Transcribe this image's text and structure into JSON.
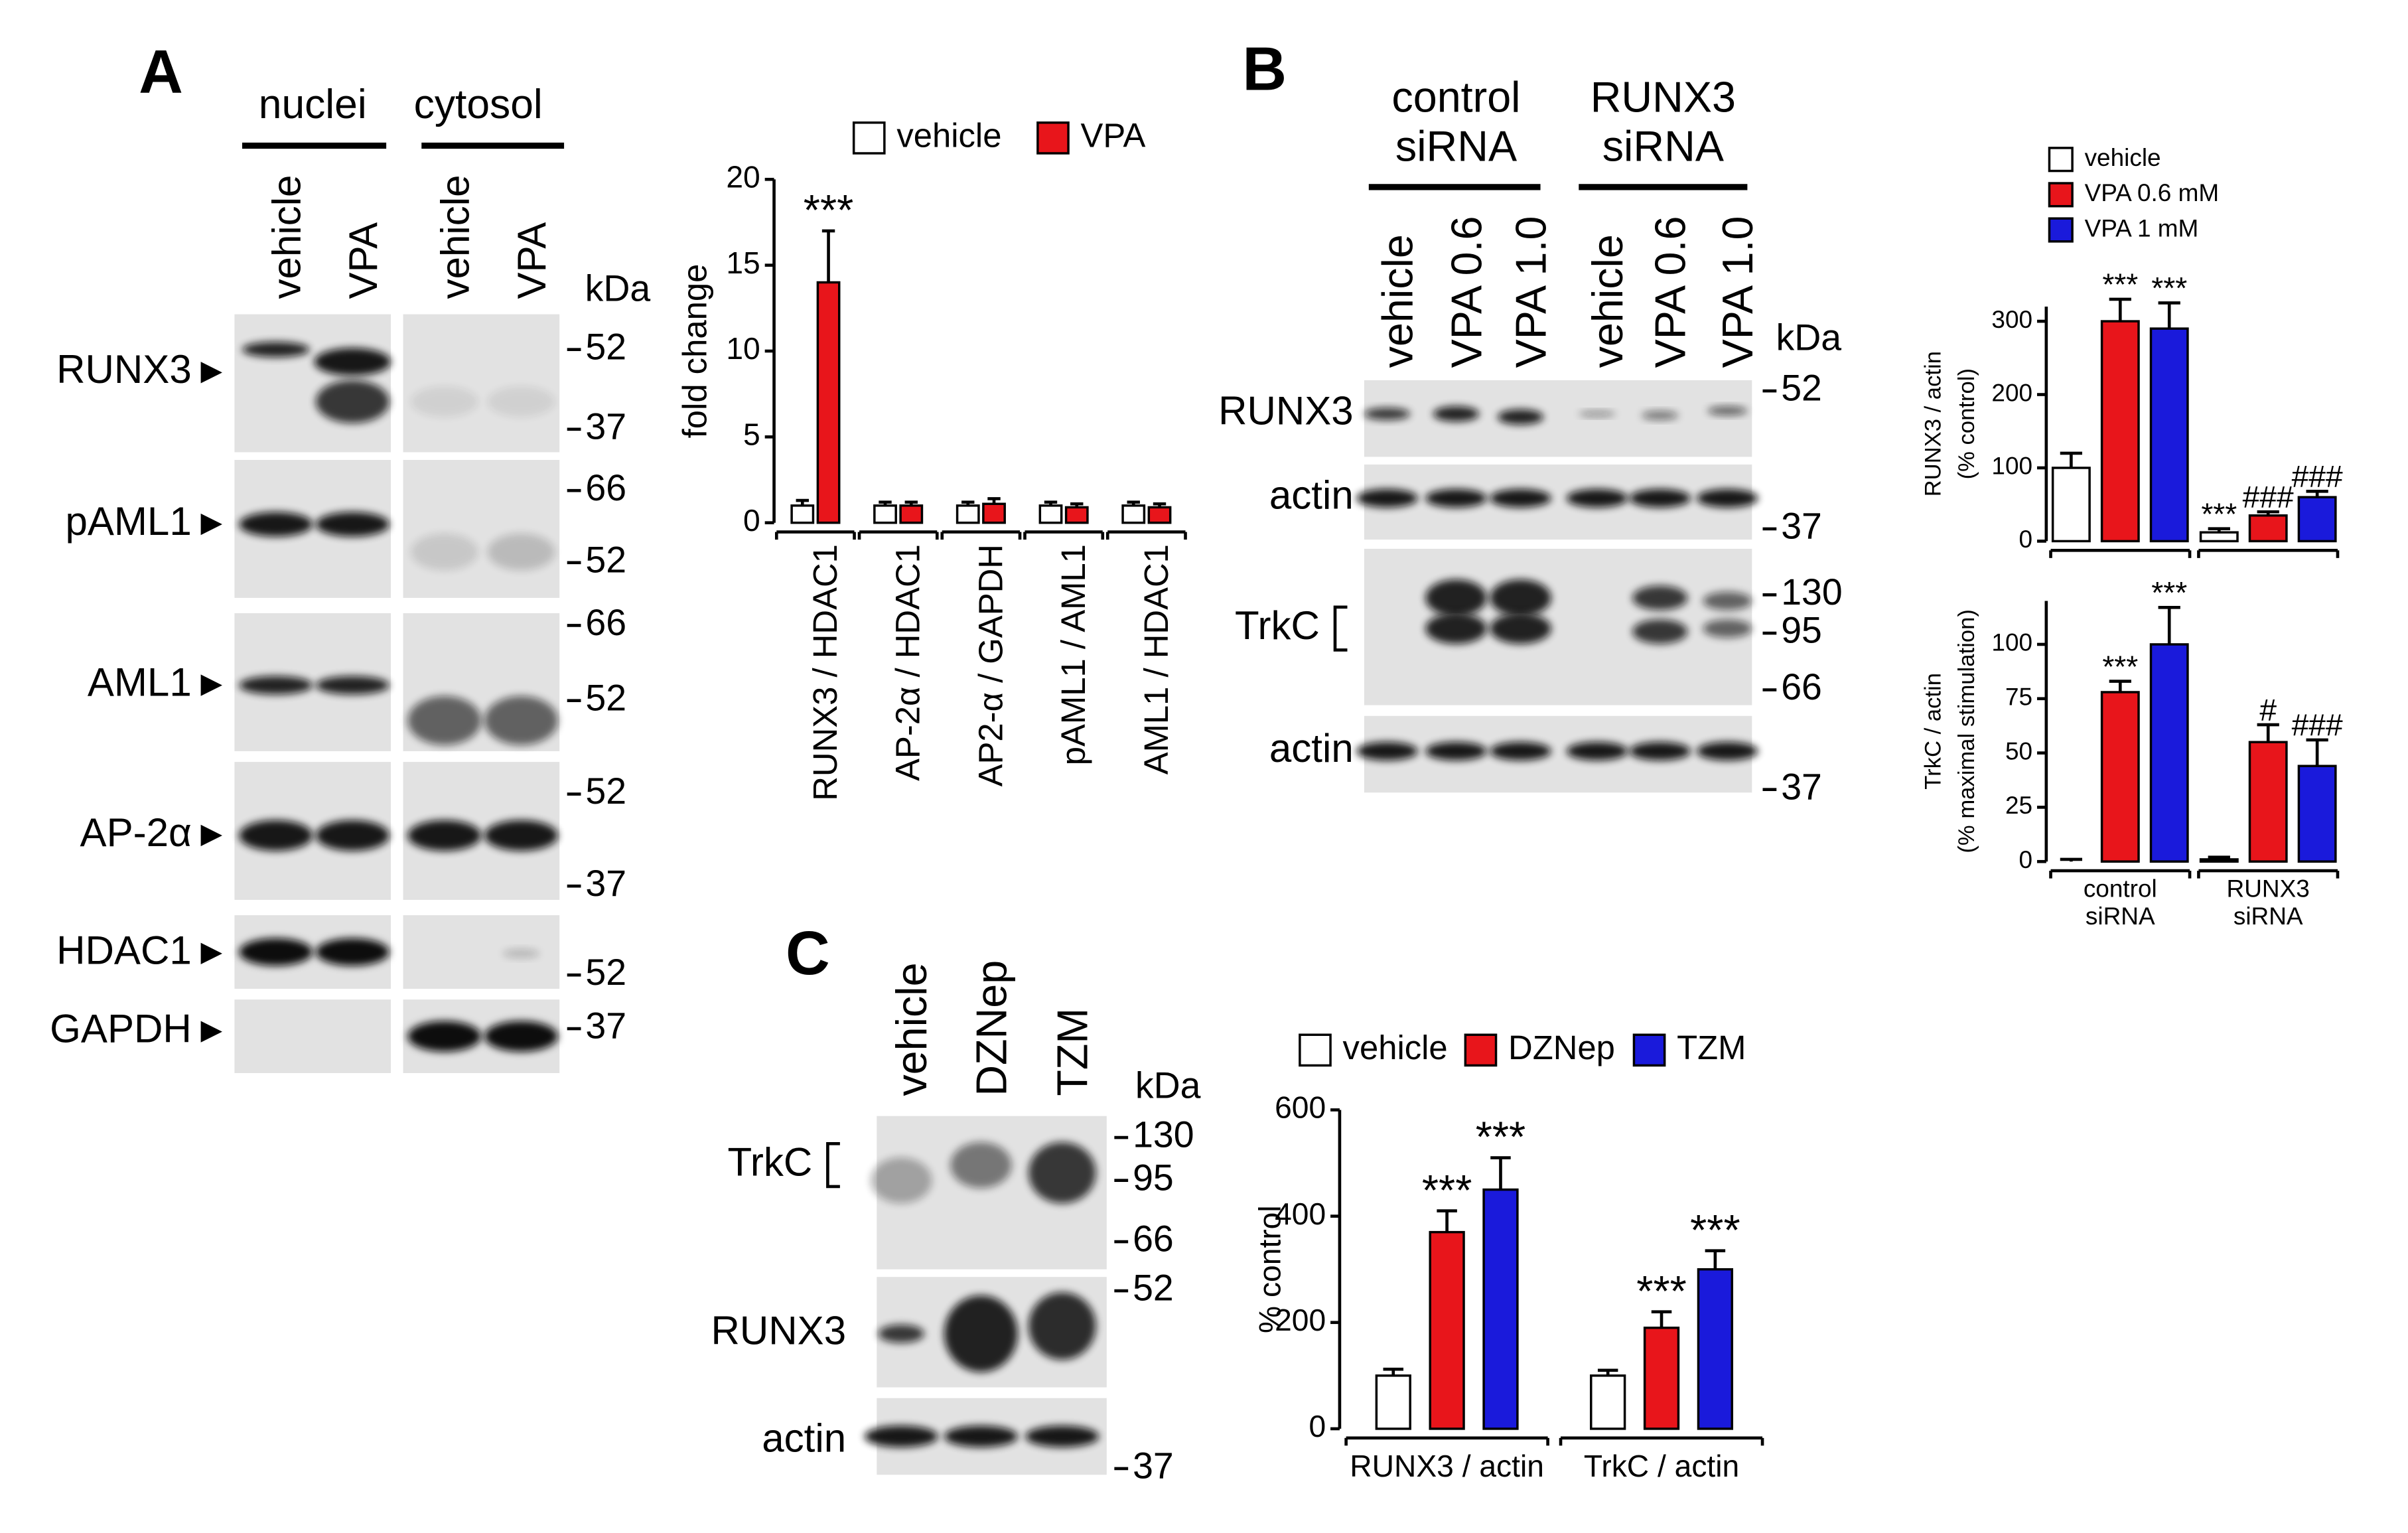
{
  "panels": {
    "A": {
      "label": "A",
      "fractions": [
        "nuclei",
        "cytosol"
      ],
      "lanes": [
        "vehicle",
        "VPA",
        "vehicle",
        "VPA"
      ],
      "unit": "kDa",
      "rows": [
        {
          "protein": "RUNX3",
          "markers": [
            52,
            37
          ]
        },
        {
          "protein": "pAML1",
          "markers": [
            66,
            52
          ]
        },
        {
          "protein": "AML1",
          "markers": [
            66,
            52
          ]
        },
        {
          "protein": "AP-2α",
          "markers": [
            52,
            37
          ]
        },
        {
          "protein": "HDAC1",
          "markers": [
            52
          ]
        },
        {
          "protein": "GAPDH",
          "markers": [
            37
          ]
        }
      ]
    },
    "B": {
      "label": "B",
      "groups": [
        "control siRNA",
        "RUNX3 siRNA"
      ],
      "lanes": [
        "vehicle",
        "VPA 0.6",
        "VPA 1.0",
        "vehicle",
        "VPA 0.6",
        "VPA 1.0"
      ],
      "unit": "kDa",
      "rows": [
        {
          "protein": "RUNX3",
          "markers": [
            52
          ]
        },
        {
          "protein": "actin",
          "markers": [
            37
          ]
        },
        {
          "protein": "TrkC",
          "markers": [
            130,
            95,
            66
          ]
        },
        {
          "protein": "actin",
          "markers": [
            37
          ]
        }
      ]
    },
    "C": {
      "label": "C",
      "lanes": [
        "vehicle",
        "DZNep",
        "TZM"
      ],
      "unit": "kDa",
      "rows": [
        {
          "protein": "TrkC",
          "markers": [
            130,
            95,
            66
          ]
        },
        {
          "protein": "RUNX3",
          "markers": [
            52
          ]
        },
        {
          "protein": "actin",
          "markers": [
            37
          ]
        }
      ]
    }
  },
  "chart_data": [
    {
      "type": "bar",
      "y_label": "fold change",
      "categories": [
        "RUNX3 / HDAC1",
        "AP-2α / HDAC1",
        "AP2-α / GAPDH",
        "pAML1 / AML1",
        "AML1 / HDAC1"
      ],
      "series": [
        {
          "name": "vehicle",
          "color": "#ffffff",
          "values": [
            1,
            1,
            1,
            1,
            1
          ],
          "errors": [
            0.3,
            0.2,
            0.2,
            0.2,
            0.2
          ],
          "annotations": [
            null,
            null,
            null,
            null,
            null
          ]
        },
        {
          "name": "VPA",
          "color": "#e8151b",
          "values": [
            14,
            1,
            1.1,
            0.9,
            0.9
          ],
          "errors": [
            3,
            0.2,
            0.3,
            0.2,
            0.2
          ],
          "annotations": [
            "***",
            null,
            null,
            null,
            null
          ]
        }
      ],
      "ylim": [
        0,
        20
      ],
      "yticks": [
        0,
        5,
        10,
        15,
        20
      ]
    },
    {
      "type": "bar",
      "y_label": [
        "RUNX3 / actin",
        "(% control)"
      ],
      "categories": [
        null,
        null
      ],
      "series": [
        {
          "name": "vehicle",
          "color": "#ffffff",
          "values": [
            100,
            12
          ],
          "errors": [
            20,
            5
          ],
          "annotations": [
            null,
            "***"
          ]
        },
        {
          "name": "VPA 0.6 mM",
          "color": "#e8151b",
          "values": [
            300,
            35
          ],
          "errors": [
            30,
            5
          ],
          "annotations": [
            "***",
            "###"
          ]
        },
        {
          "name": "VPA 1 mM",
          "color": "#1a1adb",
          "values": [
            290,
            60
          ],
          "errors": [
            35,
            8
          ],
          "annotations": [
            "***",
            "###"
          ]
        }
      ],
      "ylim": [
        0,
        320
      ],
      "yticks": [
        0,
        100,
        200,
        300
      ]
    },
    {
      "type": "bar",
      "y_label": [
        "TrkC / actin",
        "(% maximal stimulation)"
      ],
      "categories": [
        "control siRNA",
        "RUNX3 siRNA"
      ],
      "series": [
        {
          "color": "#ffffff",
          "values": [
            0,
            1
          ],
          "errors": [
            1,
            1
          ],
          "annotations": [
            null,
            null
          ]
        },
        {
          "color": "#e8151b",
          "values": [
            78,
            55
          ],
          "errors": [
            5,
            8
          ],
          "annotations": [
            "***",
            "#"
          ]
        },
        {
          "color": "#1a1adb",
          "values": [
            100,
            44
          ],
          "errors": [
            17,
            12
          ],
          "annotations": [
            "***",
            "###"
          ]
        }
      ],
      "ylim": [
        0,
        120
      ],
      "yticks": [
        0,
        25,
        50,
        75,
        100
      ]
    },
    {
      "type": "bar",
      "y_label": "% control",
      "categories": [
        "RUNX3 / actin",
        "TrkC / actin"
      ],
      "series": [
        {
          "name": "vehicle",
          "color": "#ffffff",
          "values": [
            100,
            100
          ],
          "errors": [
            12,
            10
          ],
          "annotations": [
            null,
            null
          ]
        },
        {
          "name": "DZNep",
          "color": "#e8151b",
          "values": [
            370,
            190
          ],
          "errors": [
            40,
            30
          ],
          "annotations": [
            "***",
            "***"
          ]
        },
        {
          "name": "TZM",
          "color": "#1a1adb",
          "values": [
            450,
            300
          ],
          "errors": [
            60,
            35
          ],
          "annotations": [
            "***",
            "***"
          ]
        }
      ],
      "ylim": [
        0,
        600
      ],
      "yticks": [
        0,
        200,
        400,
        600
      ]
    }
  ]
}
